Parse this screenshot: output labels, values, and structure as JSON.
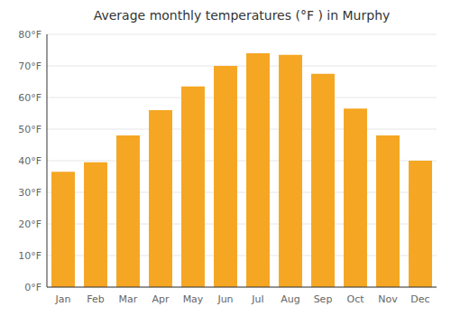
{
  "chart_data": {
    "type": "bar",
    "title": "Average monthly temperatures (°F ) in Murphy",
    "categories": [
      "Jan",
      "Feb",
      "Mar",
      "Apr",
      "May",
      "Jun",
      "Jul",
      "Aug",
      "Sep",
      "Oct",
      "Nov",
      "Dec"
    ],
    "values": [
      36.5,
      39.5,
      48,
      56,
      63.5,
      70,
      74,
      73.5,
      67.5,
      56.5,
      48,
      40
    ],
    "color": "#F5A623",
    "ylim": [
      0,
      80
    ],
    "yticks": [
      {
        "value": 0,
        "label": "0°F"
      },
      {
        "value": 10,
        "label": "10°F"
      },
      {
        "value": 20,
        "label": "20°F"
      },
      {
        "value": 30,
        "label": "30°F"
      },
      {
        "value": 40,
        "label": "40°F"
      },
      {
        "value": 50,
        "label": "50°F"
      },
      {
        "value": 60,
        "label": "60°F"
      },
      {
        "value": 70,
        "label": "70°F"
      },
      {
        "value": 80,
        "label": "80°F"
      }
    ],
    "grid": true
  }
}
